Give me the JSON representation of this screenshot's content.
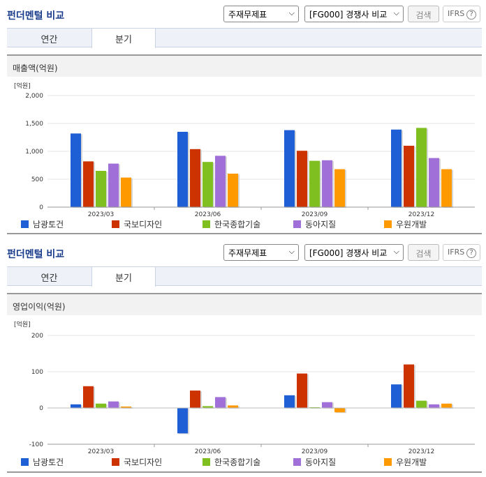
{
  "panels": [
    {
      "title": "펀더멘털 비교",
      "select1": "주재무제표",
      "select2": "[FG000] 경쟁사 비교",
      "search_label": "검색",
      "ifrs_label": "IFRS",
      "ifrs_q": "?",
      "tabs": [
        "연간",
        "분기"
      ],
      "chart_title": "매출액(억원)"
    },
    {
      "title": "펀더멘털 비교",
      "select1": "주재무제표",
      "select2": "[FG000] 경쟁사 비교",
      "search_label": "검색",
      "ifrs_label": "IFRS",
      "ifrs_q": "?",
      "tabs": [
        "연간",
        "분기"
      ],
      "chart_title": "영업이익(억원)"
    }
  ],
  "colors": [
    "#1f5fd6",
    "#cc3300",
    "#7fbf1f",
    "#a070d8",
    "#ff9900"
  ],
  "chart_data": [
    {
      "type": "bar",
      "unit_label": "[억원]",
      "categories": [
        "2023/03",
        "2023/06",
        "2023/09",
        "2023/12"
      ],
      "ylim": [
        0,
        2000
      ],
      "yticks": [
        0,
        500,
        1000,
        1500,
        2000
      ],
      "ytick_labels": [
        "0",
        "500",
        "1,000",
        "1,500",
        "2,000"
      ],
      "series": [
        {
          "name": "남광토건",
          "values": [
            1320,
            1350,
            1380,
            1390
          ]
        },
        {
          "name": "국보디자인",
          "values": [
            820,
            1040,
            1010,
            1100
          ]
        },
        {
          "name": "한국종합기술",
          "values": [
            650,
            810,
            830,
            1420
          ]
        },
        {
          "name": "동아지질",
          "values": [
            780,
            920,
            840,
            880
          ]
        },
        {
          "name": "우원개발",
          "values": [
            530,
            600,
            680,
            680
          ]
        }
      ]
    },
    {
      "type": "bar",
      "unit_label": "[억원]",
      "categories": [
        "2023/03",
        "2023/06",
        "2023/09",
        "2023/12"
      ],
      "ylim": [
        -100,
        200
      ],
      "yticks": [
        -100,
        0,
        100,
        200
      ],
      "ytick_labels": [
        "-100",
        "0",
        "100",
        "200"
      ],
      "series": [
        {
          "name": "남광토건",
          "values": [
            10,
            -70,
            35,
            65
          ]
        },
        {
          "name": "국보디자인",
          "values": [
            60,
            48,
            95,
            120
          ]
        },
        {
          "name": "한국종합기술",
          "values": [
            12,
            5,
            2,
            20
          ]
        },
        {
          "name": "동아지질",
          "values": [
            18,
            30,
            16,
            10
          ]
        },
        {
          "name": "우원개발",
          "values": [
            4,
            7,
            -12,
            12
          ]
        }
      ]
    }
  ]
}
